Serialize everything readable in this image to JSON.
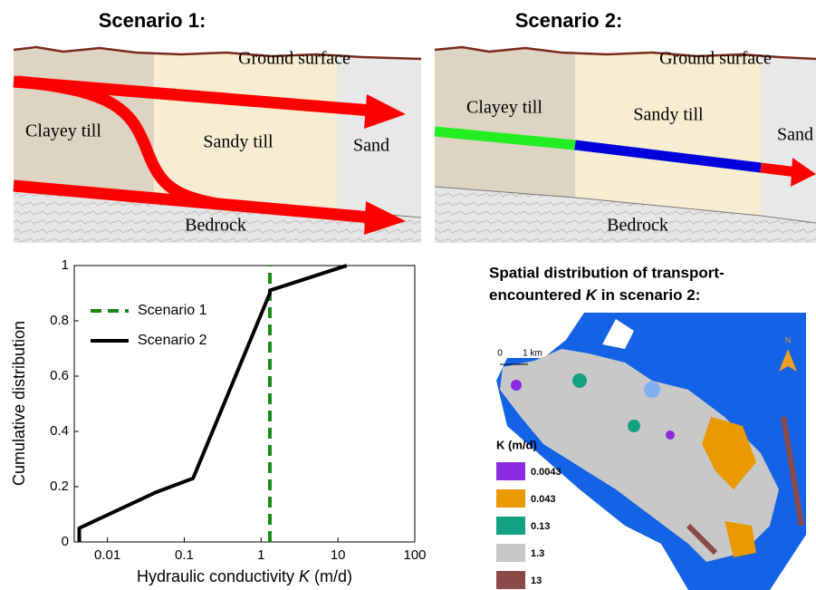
{
  "scenario_1": {
    "title": "Scenario 1:",
    "ground": "Ground surface",
    "clay": "Clayey till",
    "sandy": "Sandy till",
    "sand": "Sand",
    "bedrock": "Bedrock"
  },
  "scenario_2": {
    "title": "Scenario 2:",
    "ground": "Ground surface",
    "clay": "Clayey till",
    "sandy": "Sandy till",
    "sand": "Sand",
    "bedrock": "Bedrock"
  },
  "chart_data": {
    "type": "line",
    "y_label": "Cumulative distribution",
    "x_label": [
      "Hydraulic conductivity ",
      "K",
      " (m/d)"
    ],
    "log_x": true,
    "xlim": [
      0.0037,
      100
    ],
    "xticks": [
      0.01,
      0.1,
      1,
      10,
      100
    ],
    "ylim": [
      0,
      1
    ],
    "yticks": [
      0,
      0.2,
      0.4,
      0.6,
      0.8,
      1
    ],
    "legend": "upper left",
    "series": [
      {
        "name": "Scenario 1",
        "color": "#1a8a1a",
        "dashed": true,
        "x": [
          1.3,
          1.3
        ],
        "values": [
          0,
          1
        ]
      },
      {
        "name": "Scenario 2",
        "color": "#000000",
        "dashed": false,
        "x": [
          0.0043,
          0.0043,
          0.043,
          0.13,
          1.3,
          1.3,
          13
        ],
        "values": [
          0,
          0.05,
          0.18,
          0.23,
          0.9,
          0.91,
          1
        ]
      }
    ]
  },
  "map": {
    "title": [
      "Spatial distribution of transport-",
      "encountered ",
      "K",
      " in scenario 2:"
    ],
    "scale": [
      "0",
      "1 km"
    ],
    "north": "N",
    "legend_title": "K (m/d)",
    "legend": [
      {
        "label": "0.0043",
        "color": "#8a2be2"
      },
      {
        "label": "0.043",
        "color": "#e89a00"
      },
      {
        "label": "0.13",
        "color": "#14a083"
      },
      {
        "label": "1.3",
        "color": "#c8c8c8"
      },
      {
        "label": "13",
        "color": "#8b4a4a"
      }
    ]
  }
}
